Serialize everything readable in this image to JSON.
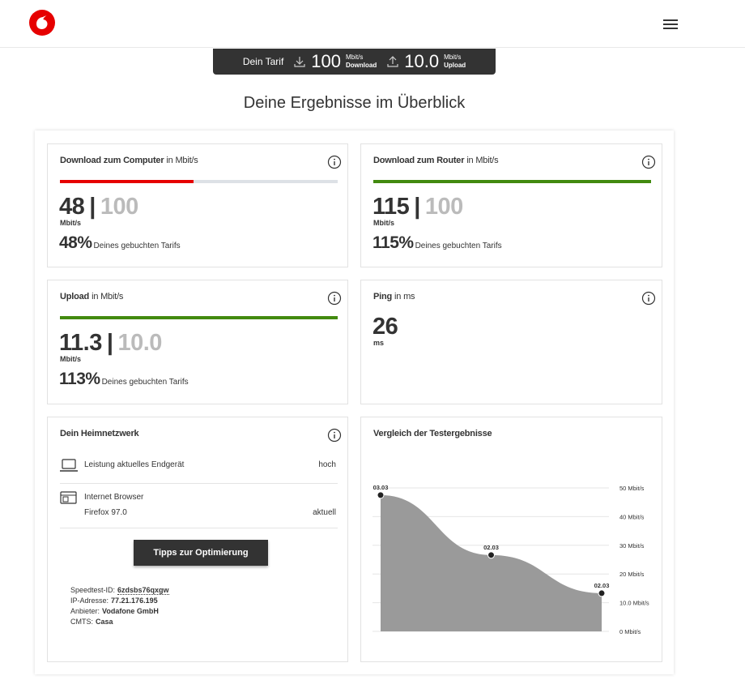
{
  "tariff": {
    "label": "Dein Tarif",
    "download": "100",
    "download_unit": "Mbit/s",
    "download_label": "Download",
    "upload": "10.0",
    "upload_unit": "Mbit/s",
    "upload_label": "Upload"
  },
  "title": "Deine Ergebnisse im Überblick",
  "separator": "|",
  "cards": [
    {
      "title": "Download zum Computer",
      "unit_note": "in Mbit/s",
      "measured": "48",
      "booked": "100",
      "unit": "Mbit/s",
      "percent": 48,
      "percent_label": "48%",
      "percent_text": "Deines gebuchten Tarifs",
      "bar_color": "#e60000"
    },
    {
      "title": "Download zum Router",
      "unit_note": "in Mbit/s",
      "measured": "115",
      "booked": "100",
      "unit": "Mbit/s",
      "percent": 115,
      "percent_label": "115%",
      "percent_text": "Deines gebuchten Tarifs",
      "bar_color": "#428a0f"
    },
    {
      "title": "Upload",
      "unit_note": "in Mbit/s",
      "measured": "11.3",
      "booked": "10.0",
      "unit": "Mbit/s",
      "percent": 113,
      "percent_label": "113%",
      "percent_text": "Deines gebuchten Tarifs",
      "bar_color": "#428a0f"
    },
    {
      "title": "Ping",
      "unit_note": "in ms",
      "measured": "26",
      "unit": "ms"
    }
  ],
  "home_network": {
    "title": "Dein Heimnetzwerk",
    "rows": [
      {
        "label": "Leistung aktuelles Endgerät",
        "status": "hoch"
      },
      {
        "label": "Internet Browser",
        "detail": "Firefox 97.0",
        "status": "aktuell"
      }
    ],
    "button": "Tipps zur Optimierung",
    "info": [
      {
        "label": "Speedtest-ID:",
        "value": "6zdsbs76qxgw"
      },
      {
        "label": "IP-Adresse:",
        "value": "77.21.176.195"
      },
      {
        "label": "Anbieter:",
        "value": "Vodafone GmbH"
      },
      {
        "label": "CMTS:",
        "value": "Casa"
      }
    ]
  },
  "chart_data": {
    "type": "area",
    "title": "Vergleich der Testergebnisse",
    "categories": [
      "03.03",
      "02.03",
      "02.03"
    ],
    "values": [
      47.5,
      26.6,
      13.3
    ],
    "color": "#9a9a9a",
    "ylim": [
      0,
      50
    ],
    "yticks": [
      {
        "value": 0,
        "label": "0 Mbit/s"
      },
      {
        "value": 10,
        "label": "10.0 Mbit/s"
      },
      {
        "value": 20,
        "label": "20 Mbit/s"
      },
      {
        "value": 30,
        "label": "30 Mbit/s"
      },
      {
        "value": 40,
        "label": "40 Mbit/s"
      },
      {
        "value": 50,
        "label": "50 Mbit/s"
      }
    ],
    "grid": true
  }
}
